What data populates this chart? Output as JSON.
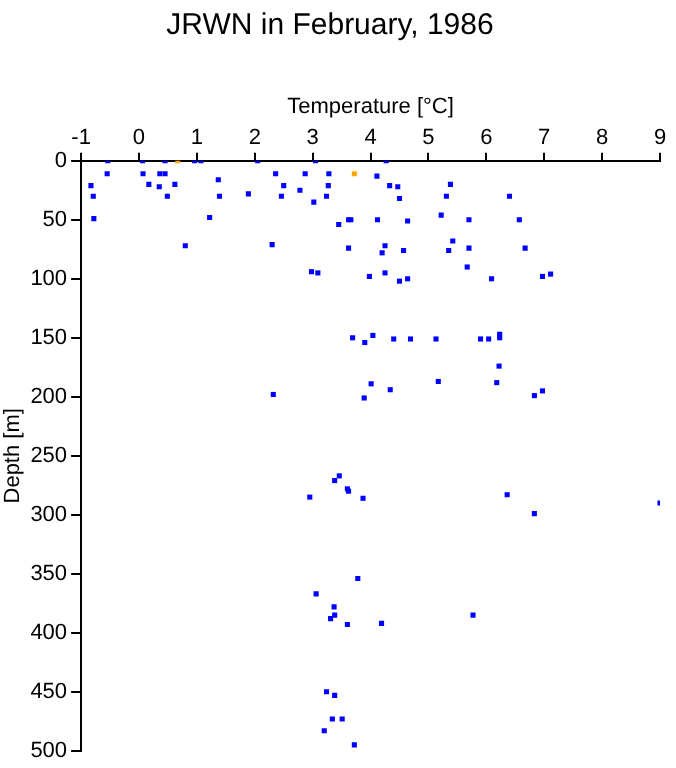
{
  "chart_data": {
    "type": "scatter",
    "title": "JRWN in February, 1986",
    "xlabel": "Temperature [°C]",
    "ylabel": "Depth [m]",
    "xlim": [
      -1,
      9
    ],
    "xticks": [
      -1,
      0,
      1,
      2,
      3,
      4,
      5,
      6,
      7,
      8,
      9
    ],
    "ylim": [
      500,
      0
    ],
    "yticks": [
      0,
      50,
      100,
      150,
      200,
      250,
      300,
      350,
      400,
      450,
      500
    ],
    "grid": false,
    "legend": false,
    "marker": "square",
    "series": [
      {
        "color": "#0000ff",
        "x": [
          -0.54,
          0.06,
          0.45,
          0.96,
          1.07,
          2.05,
          3.05,
          -0.83,
          -0.79,
          -0.78,
          -0.55,
          0.07,
          0.17,
          0.36,
          0.45,
          0.35,
          0.49,
          0.62,
          0.8,
          1.22,
          1.37,
          1.39,
          1.89,
          2.3,
          2.36,
          2.46,
          2.5,
          2.78,
          2.87,
          3.02,
          2.98,
          3.09,
          3.24,
          3.28,
          3.27,
          3.45,
          3.62,
          3.66,
          3.62,
          3.98,
          4.04,
          4.27,
          4.11,
          4.33,
          4.47,
          4.5,
          5.38,
          5.31,
          6.4,
          4.12,
          4.64,
          5.22,
          5.7,
          6.57,
          4.25,
          4.2,
          4.57,
          5.42,
          5.35,
          5.7,
          6.67,
          4.25,
          4.5,
          4.64,
          5.67,
          6.09,
          6.97,
          7.11,
          6.23,
          3.69,
          3.9,
          4.4,
          4.69,
          5.13,
          5.9,
          6.04,
          6.23,
          2.32,
          4.01,
          3.89,
          4.34,
          5.17,
          6.22,
          6.18,
          6.83,
          6.97,
          2.95,
          3.38,
          3.46,
          3.6,
          3.62,
          3.87,
          6.36,
          6.83,
          9.0,
          3.78,
          3.06,
          3.37,
          3.38,
          3.31,
          3.6,
          4.19,
          5.77,
          3.24,
          3.38,
          3.34,
          3.51,
          3.2,
          3.72
        ],
        "values": [
          0,
          0,
          0,
          0,
          0,
          0,
          0,
          21,
          30,
          49,
          11,
          11,
          20,
          11,
          11,
          22,
          30,
          20,
          72,
          48,
          16,
          30,
          28,
          71,
          11,
          30,
          21,
          25,
          11,
          35,
          94,
          95,
          30,
          11,
          21,
          54,
          50,
          50,
          74,
          98,
          148,
          0,
          13,
          21,
          22,
          32,
          20,
          30,
          30,
          50,
          51,
          46,
          50,
          50,
          72,
          78,
          76,
          68,
          76,
          74,
          74,
          95,
          102,
          100,
          90,
          100,
          98,
          96,
          147,
          150,
          154,
          151,
          151,
          151,
          151,
          151,
          150,
          198,
          189,
          201,
          194,
          187,
          174,
          188,
          199,
          195,
          285,
          271,
          267,
          278,
          280,
          286,
          283,
          299,
          290,
          354,
          367,
          378,
          385,
          388,
          393,
          392,
          385,
          450,
          453,
          473,
          473,
          483,
          495
        ]
      },
      {
        "color": "#ffa500",
        "x": [
          0.67,
          3.72
        ],
        "values": [
          0,
          11
        ]
      }
    ]
  }
}
